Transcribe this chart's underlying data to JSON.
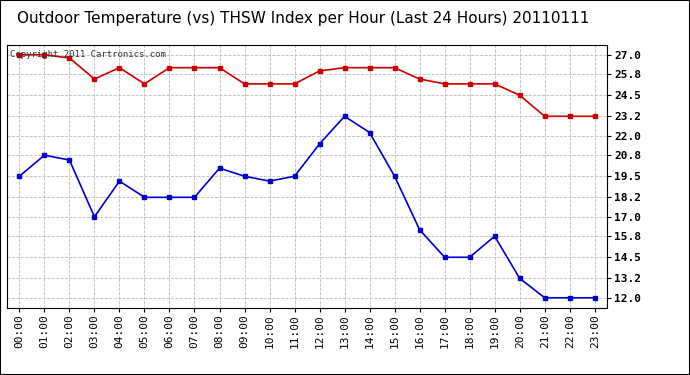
{
  "title": "Outdoor Temperature (vs) THSW Index per Hour (Last 24 Hours) 20110111",
  "copyright_text": "Copyright 2011 Cartronics.com",
  "x_labels": [
    "00:00",
    "01:00",
    "02:00",
    "03:00",
    "04:00",
    "05:00",
    "06:00",
    "07:00",
    "08:00",
    "09:00",
    "10:00",
    "11:00",
    "12:00",
    "13:00",
    "14:00",
    "15:00",
    "16:00",
    "17:00",
    "18:00",
    "19:00",
    "20:00",
    "21:00",
    "22:00",
    "23:00"
  ],
  "temp_data": [
    19.5,
    20.8,
    20.5,
    17.0,
    19.2,
    18.2,
    18.2,
    18.2,
    20.0,
    19.5,
    19.2,
    19.5,
    21.5,
    23.2,
    22.2,
    19.5,
    16.2,
    14.5,
    14.5,
    15.8,
    13.2,
    12.0,
    12.0,
    12.0
  ],
  "thsw_data": [
    27.0,
    27.0,
    26.8,
    25.5,
    26.2,
    25.2,
    26.2,
    26.2,
    26.2,
    25.2,
    25.2,
    25.2,
    26.0,
    26.2,
    26.2,
    26.2,
    25.5,
    25.2,
    25.2,
    25.2,
    24.5,
    23.2,
    23.2,
    23.2
  ],
  "temp_color": "#0000cc",
  "thsw_color": "#cc0000",
  "bg_color": "#ffffff",
  "plot_bg_color": "#ffffff",
  "grid_color": "#bbbbbb",
  "y_ticks": [
    12.0,
    13.2,
    14.5,
    15.8,
    17.0,
    18.2,
    19.5,
    20.8,
    22.0,
    23.2,
    24.5,
    25.8,
    27.0
  ],
  "y_min": 11.4,
  "y_max": 27.6,
  "title_fontsize": 11,
  "tick_fontsize": 8,
  "marker_size": 3,
  "line_width": 1.2
}
